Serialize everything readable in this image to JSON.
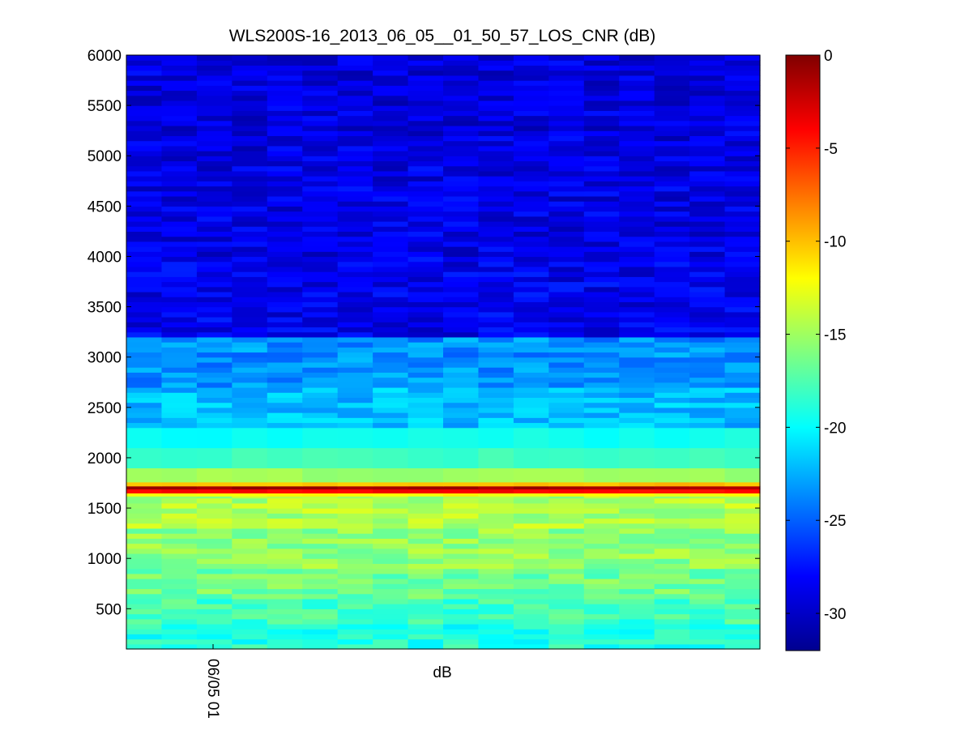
{
  "chart_data": {
    "type": "heatmap",
    "title": "WLS200S-16_2013_06_05__01_50_57_LOS_CNR (dB)",
    "xlabel": "dB",
    "ylabel": "",
    "x_tick_labels": [
      "06/05 01"
    ],
    "y_ticks": [
      500,
      1000,
      1500,
      2000,
      2500,
      3000,
      3500,
      4000,
      4500,
      5000,
      5500,
      6000
    ],
    "ylim": [
      100,
      6000
    ],
    "colorbar": {
      "colormap": "jet",
      "range": [
        -32,
        0
      ],
      "ticks": [
        0,
        -5,
        -10,
        -15,
        -20,
        -25,
        -30
      ]
    },
    "grid": false,
    "n_columns": 18,
    "profile_by_range": [
      {
        "from": 100,
        "to": 350,
        "cnr_db": -19.0
      },
      {
        "from": 350,
        "to": 600,
        "cnr_db": -18.0
      },
      {
        "from": 600,
        "to": 900,
        "cnr_db": -16.5
      },
      {
        "from": 900,
        "to": 1300,
        "cnr_db": -15.5
      },
      {
        "from": 1300,
        "to": 1620,
        "cnr_db": -14.5
      },
      {
        "from": 1620,
        "to": 1650,
        "cnr_db": -12.0
      },
      {
        "from": 1650,
        "to": 1690,
        "cnr_db": -4.0
      },
      {
        "from": 1690,
        "to": 1720,
        "cnr_db": -1.0
      },
      {
        "from": 1720,
        "to": 1760,
        "cnr_db": -10.0
      },
      {
        "from": 1760,
        "to": 1900,
        "cnr_db": -15.0
      },
      {
        "from": 1900,
        "to": 2100,
        "cnr_db": -18.0
      },
      {
        "from": 2100,
        "to": 2300,
        "cnr_db": -19.5
      },
      {
        "from": 2300,
        "to": 2700,
        "cnr_db": -22.0
      },
      {
        "from": 2700,
        "to": 3200,
        "cnr_db": -23.5
      },
      {
        "from": 3200,
        "to": 4000,
        "cnr_db": -28.5
      },
      {
        "from": 4000,
        "to": 5000,
        "cnr_db": -28.8
      },
      {
        "from": 5000,
        "to": 6000,
        "cnr_db": -29.0
      }
    ]
  }
}
